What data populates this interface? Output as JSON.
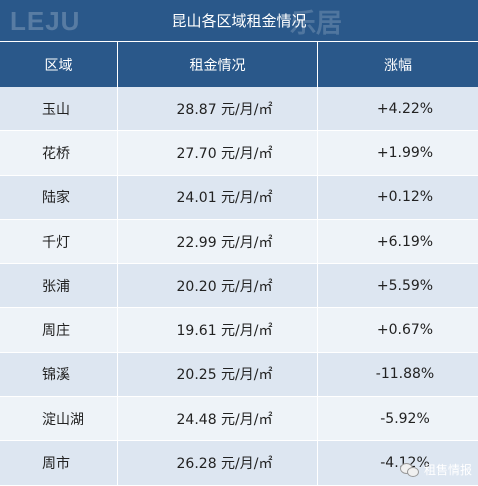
{
  "title": "昆山各区域租金情况",
  "watermark_logo": "乐居",
  "headers": [
    "区域",
    "租金情况",
    "涨幅"
  ],
  "rows": [
    {
      "area": "玉山",
      "rent": "28.87 元/月/㎡",
      "change": "+4.22%"
    },
    {
      "area": "花桥",
      "rent": "27.70 元/月/㎡",
      "change": "+1.99%"
    },
    {
      "area": "陆家",
      "rent": "24.01 元/月/㎡",
      "change": "+0.12%"
    },
    {
      "area": "千灯",
      "rent": "22.99 元/月/㎡",
      "change": "+6.19%"
    },
    {
      "area": "张浦",
      "rent": "20.20 元/月/㎡",
      "change": "+5.59%"
    },
    {
      "area": "周庄",
      "rent": "19.61 元/月/㎡",
      "change": "+0.67%"
    },
    {
      "area": "锦溪",
      "rent": "20.25 元/月/㎡",
      "change": "-11.88%"
    },
    {
      "area": "淀山湖",
      "rent": "24.48 元/月/㎡",
      "change": "-5.92%"
    },
    {
      "area": "周市",
      "rent": "26.28 元/月/㎡",
      "change": "-4.12%"
    }
  ],
  "corner_watermark": "租售情报",
  "colors": {
    "header_bg": "#2a588a",
    "row_odd": "#dde6f1",
    "row_even": "#eef3f8"
  },
  "icons": [
    "wechat-icon"
  ]
}
